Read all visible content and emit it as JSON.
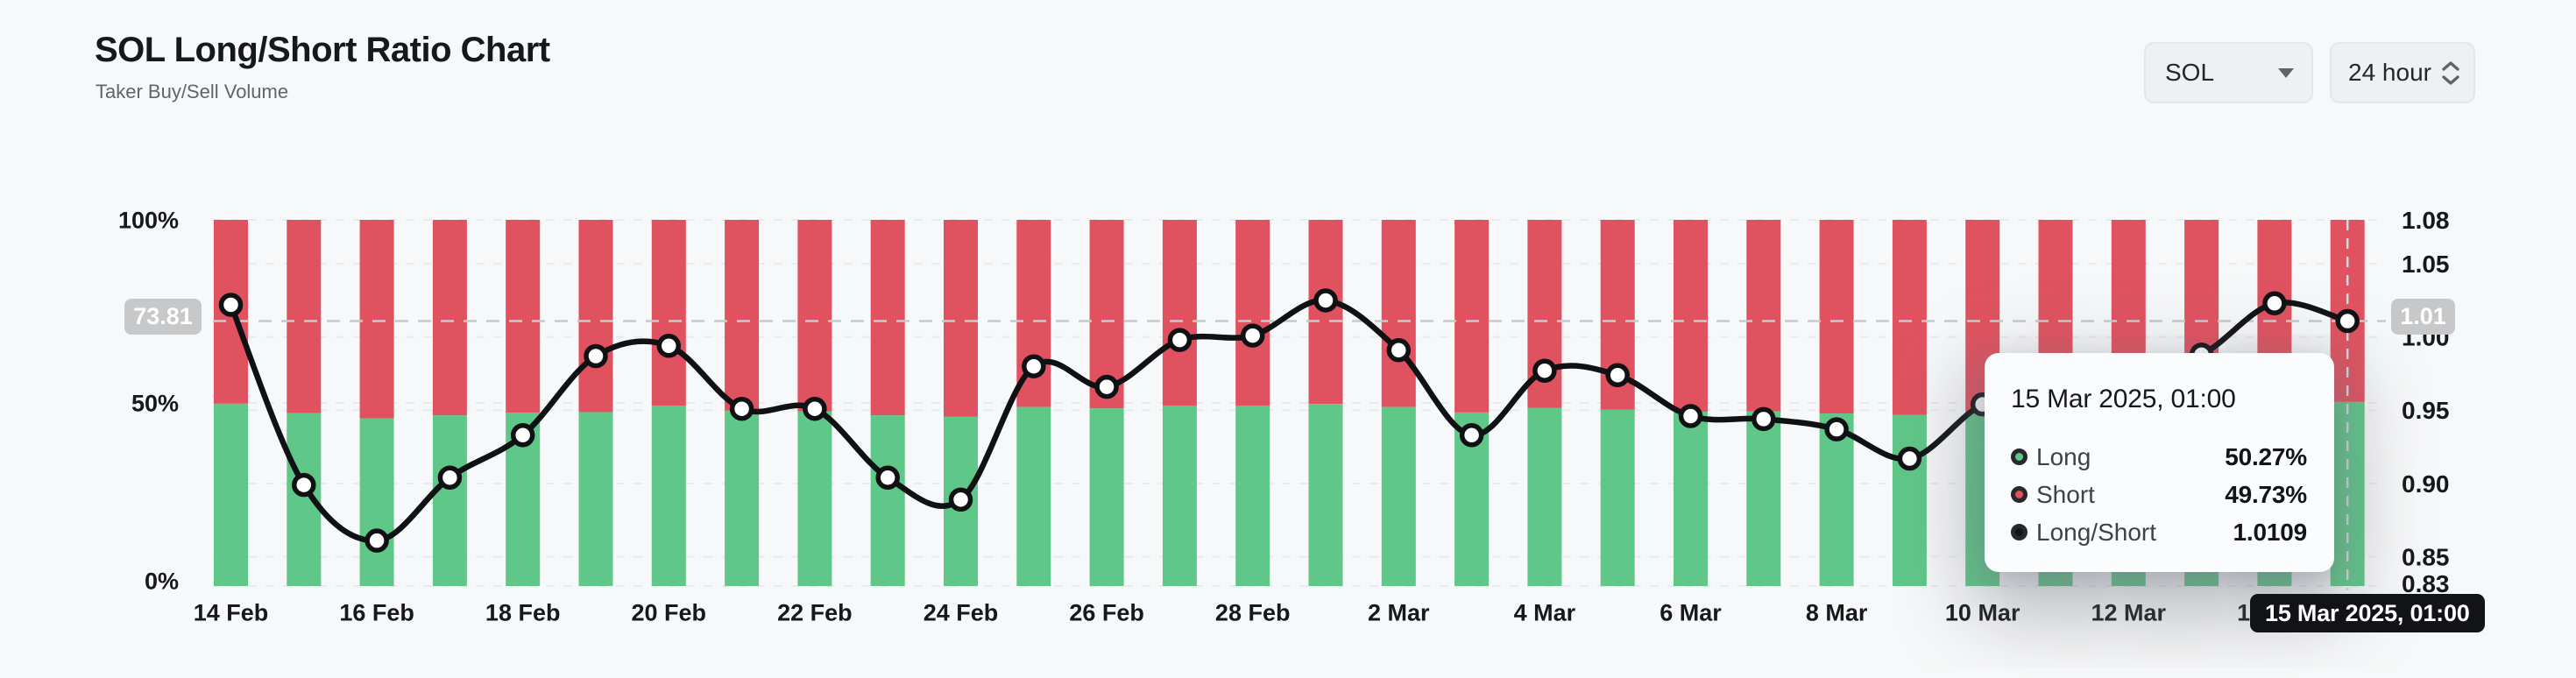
{
  "header": {
    "title": "SOL Long/Short Ratio Chart",
    "subtitle": "Taker Buy/Sell Volume"
  },
  "controls": {
    "symbol_select": {
      "value": "SOL"
    },
    "interval_select": {
      "value": "24 hour"
    }
  },
  "crosshair": {
    "left_axis_badge": "73.81",
    "right_axis_badge": "1.01",
    "x_axis_badge": "15 Mar 2025, 01:00"
  },
  "tooltip": {
    "title": "15 Mar 2025, 01:00",
    "rows": [
      {
        "series": "Long",
        "value": "50.27%"
      },
      {
        "series": "Short",
        "value": "49.73%"
      },
      {
        "series": "Long/Short",
        "value": "1.0109"
      }
    ]
  },
  "chart_data": {
    "type": "combo_stacked_bar_line",
    "title": "SOL Long/Short Ratio Chart",
    "categories": [
      "14 Feb",
      "15 Feb",
      "16 Feb",
      "17 Feb",
      "18 Feb",
      "19 Feb",
      "20 Feb",
      "21 Feb",
      "22 Feb",
      "23 Feb",
      "24 Feb",
      "25 Feb",
      "26 Feb",
      "27 Feb",
      "28 Feb",
      "1 Mar",
      "2 Mar",
      "3 Mar",
      "4 Mar",
      "5 Mar",
      "6 Mar",
      "7 Mar",
      "8 Mar",
      "9 Mar",
      "10 Mar",
      "11 Mar",
      "12 Mar",
      "13 Mar",
      "14 Mar",
      "15 Mar"
    ],
    "series": [
      {
        "name": "Long",
        "type": "bar",
        "stack": "volume",
        "unit": "%",
        "color": "#5fc788",
        "values": [
          49.8,
          47.2,
          45.8,
          46.6,
          47.3,
          47.5,
          49.2,
          47.9,
          47.7,
          46.6,
          46.2,
          48.9,
          48.5,
          49.2,
          49.2,
          49.7,
          48.9,
          47.4,
          48.6,
          48.2,
          47.6,
          47.7,
          47.1,
          46.7,
          47.0,
          48.0,
          48.2,
          48.0,
          48.4,
          50.27
        ]
      },
      {
        "name": "Short",
        "type": "bar",
        "stack": "volume",
        "unit": "%",
        "color": "#e0525f",
        "values": [
          50.2,
          52.8,
          54.2,
          53.4,
          52.7,
          52.5,
          50.8,
          52.1,
          52.3,
          53.4,
          53.8,
          51.1,
          51.5,
          50.8,
          50.8,
          50.3,
          51.1,
          52.6,
          51.4,
          51.8,
          52.4,
          52.3,
          52.9,
          53.3,
          53.0,
          52.0,
          51.8,
          52.0,
          51.6,
          49.73
        ]
      },
      {
        "name": "Long/Short",
        "type": "line",
        "axis": "right",
        "color": "#131416",
        "values": [
          1.022,
          0.899,
          0.861,
          0.904,
          0.933,
          0.987,
          0.994,
          0.951,
          0.951,
          0.904,
          0.889,
          0.98,
          0.966,
          0.998,
          1.001,
          1.025,
          0.991,
          0.933,
          0.977,
          0.974,
          0.946,
          0.944,
          0.937,
          0.917,
          0.954,
          0.965,
          0.975,
          0.988,
          1.023,
          1.0109
        ]
      }
    ],
    "left_axis": {
      "ticks": [
        "0%",
        "50%",
        "100%"
      ],
      "range": [
        0,
        100
      ]
    },
    "right_axis": {
      "ticks": [
        "0.83",
        "0.85",
        "0.90",
        "0.95",
        "1.00",
        "1.05",
        "1.08"
      ],
      "range": [
        0.83,
        1.08
      ]
    },
    "x_axis": {
      "visible_ticks": [
        "14 Feb",
        "16 Feb",
        "18 Feb",
        "20 Feb",
        "22 Feb",
        "24 Feb",
        "26 Feb",
        "28 Feb",
        "2 Mar",
        "4 Mar",
        "6 Mar",
        "8 Mar",
        "10 Mar",
        "12 Mar",
        "14 Mar"
      ]
    },
    "grid": "dashed-horizontal",
    "legend": "none",
    "hovered_point": {
      "category": "15 Mar",
      "datetime": "15 Mar 2025, 01:00",
      "long": "50.27%",
      "short": "49.73%",
      "ratio": 1.0109
    }
  }
}
